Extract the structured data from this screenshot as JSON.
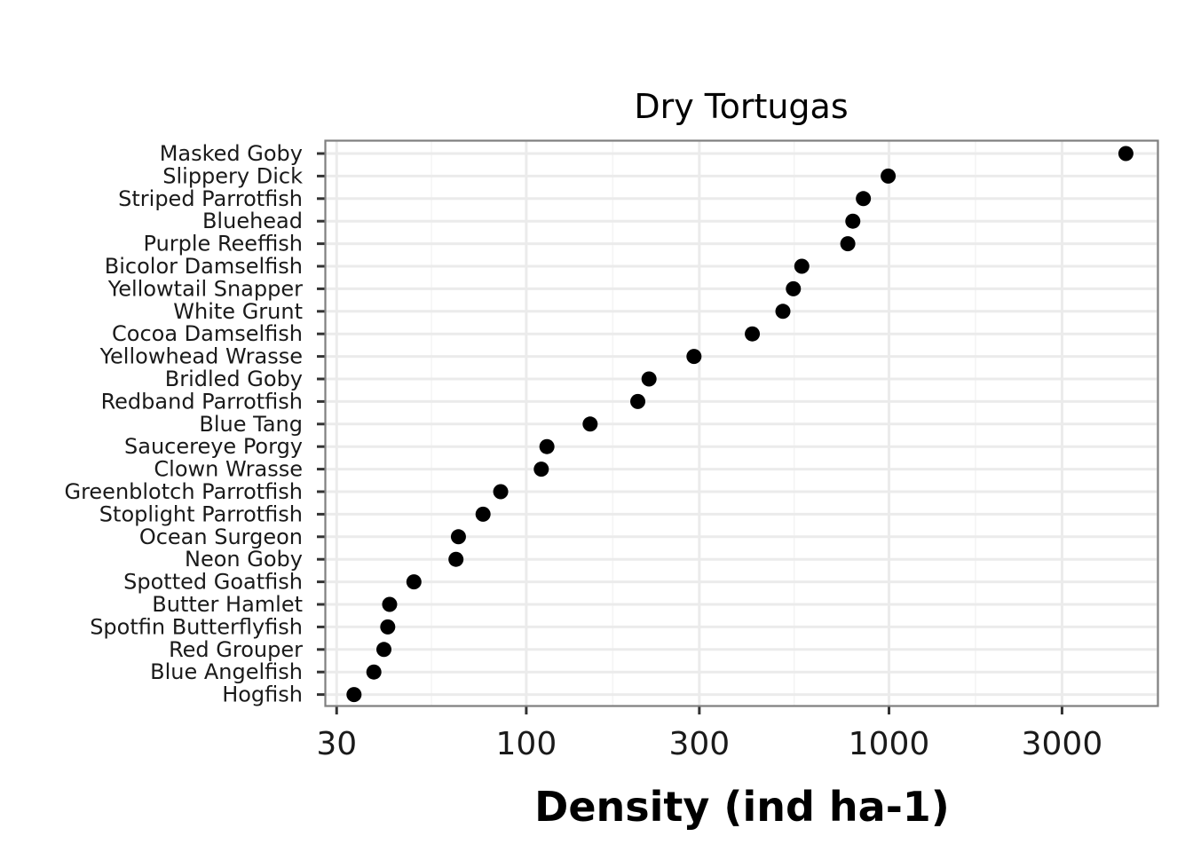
{
  "chart_data": {
    "type": "scatter",
    "title": "Dry Tortugas",
    "xlabel": "Density (ind ha-1)",
    "ylabel": "",
    "xscale": "log",
    "xlim": [
      28,
      5500
    ],
    "xticks": [
      30,
      100,
      300,
      1000,
      3000
    ],
    "xtick_labels": [
      "30",
      "100",
      "300",
      "1000",
      "3000"
    ],
    "grid": true,
    "colors": {
      "point": "#000000",
      "panel_border": "#7f7f7f",
      "grid_major": "#ebebeb",
      "grid_minor": "#f4f4f4"
    },
    "categories": [
      "Masked Goby",
      "Slippery Dick",
      "Striped Parrotfish",
      "Bluehead",
      "Purple Reeffish",
      "Bicolor Damselfish",
      "Yellowtail Snapper",
      "White Grunt",
      "Cocoa Damselfish",
      "Yellowhead Wrasse",
      "Bridled Goby",
      "Redband Parrotfish",
      "Blue Tang",
      "Saucereye Porgy",
      "Clown Wrasse",
      "Greenblotch Parrotfish",
      "Stoplight Parrotfish",
      "Ocean Surgeon",
      "Neon Goby",
      "Spotted Goatfish",
      "Butter Hamlet",
      "Spotfin Butterflyfish",
      "Red Grouper",
      "Blue Angelfish",
      "Hogfish"
    ],
    "values": [
      4500,
      995,
      850,
      795,
      770,
      575,
      545,
      510,
      420,
      290,
      218,
      203,
      150,
      114,
      110,
      85,
      76,
      65,
      64,
      49,
      42,
      41.5,
      40.5,
      38,
      33.5
    ]
  }
}
